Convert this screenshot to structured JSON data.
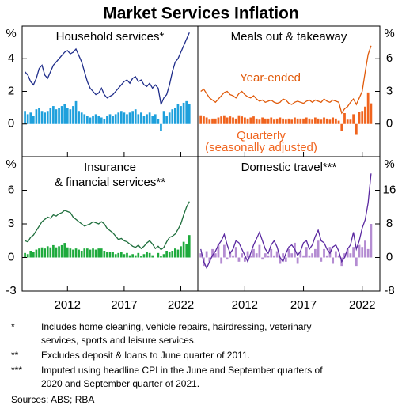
{
  "chart_data": {
    "type": "panel-grid",
    "title": "Market Services Inflation",
    "xlim": [
      2008,
      2023.5
    ],
    "xticks": [
      2012,
      2017,
      2022
    ],
    "x": [
      2008.25,
      2008.5,
      2008.75,
      2009,
      2009.25,
      2009.5,
      2009.75,
      2010,
      2010.25,
      2010.5,
      2010.75,
      2011,
      2011.25,
      2011.5,
      2011.75,
      2012,
      2012.25,
      2012.5,
      2012.75,
      2013,
      2013.25,
      2013.5,
      2013.75,
      2014,
      2014.25,
      2014.5,
      2014.75,
      2015,
      2015.25,
      2015.5,
      2015.75,
      2016,
      2016.25,
      2016.5,
      2016.75,
      2017,
      2017.25,
      2017.5,
      2017.75,
      2018,
      2018.25,
      2018.5,
      2018.75,
      2019,
      2019.25,
      2019.5,
      2019.75,
      2020,
      2020.25,
      2020.5,
      2020.75,
      2021,
      2021.25,
      2021.5,
      2021.75,
      2022,
      2022.25,
      2022.5,
      2022.75
    ],
    "panels": [
      {
        "title": [
          "Household services*"
        ],
        "unit": "%",
        "ylim": [
          -2,
          6
        ],
        "yticks": [
          0,
          2,
          4
        ],
        "series": [
          {
            "type": "bar",
            "color": "#1ea0dc",
            "values": [
              0.8,
              0.6,
              0.7,
              0.5,
              0.9,
              1.0,
              0.8,
              0.7,
              0.8,
              1.0,
              1.1,
              0.9,
              1.0,
              1.1,
              1.2,
              1.0,
              0.9,
              1.1,
              1.4,
              0.8,
              0.7,
              0.6,
              0.5,
              0.4,
              0.5,
              0.6,
              0.5,
              0.4,
              0.3,
              0.5,
              0.6,
              0.5,
              0.6,
              0.7,
              0.8,
              0.7,
              0.6,
              0.7,
              0.8,
              0.9,
              0.6,
              0.7,
              0.5,
              0.6,
              0.7,
              0.5,
              0.6,
              0.3,
              -0.4,
              0.8,
              0.5,
              0.7,
              0.9,
              1.0,
              1.2,
              1.1,
              1.3,
              1.4,
              1.2
            ]
          },
          {
            "type": "line",
            "color": "#1f2d8a",
            "values": [
              3.2,
              3.0,
              2.6,
              2.4,
              2.8,
              3.4,
              3.6,
              3.0,
              2.8,
              3.2,
              3.6,
              3.8,
              4.0,
              4.2,
              4.4,
              4.5,
              4.3,
              4.4,
              4.6,
              4.2,
              3.8,
              3.2,
              2.6,
              2.2,
              2.0,
              1.8,
              1.9,
              2.2,
              1.8,
              1.6,
              1.7,
              1.8,
              2.0,
              2.2,
              2.4,
              2.6,
              2.7,
              2.5,
              2.8,
              2.9,
              2.6,
              2.7,
              2.4,
              2.3,
              2.5,
              2.2,
              2.4,
              2.2,
              1.2,
              1.6,
              1.8,
              2.4,
              3.2,
              3.8,
              4.0,
              4.4,
              4.8,
              5.2,
              5.6
            ]
          }
        ]
      },
      {
        "title": [
          "Meals out & takeaway"
        ],
        "unit": "%",
        "ylim": [
          -3,
          9
        ],
        "yticks": [
          0,
          3,
          6
        ],
        "annotations": [
          {
            "text": "Year-ended",
            "color": "#e05a0a"
          },
          {
            "text": "Quarterly",
            "color": "#f0641e"
          },
          {
            "text": "(seasonally adjusted)",
            "color": "#f0641e"
          }
        ],
        "series": [
          {
            "type": "bar",
            "color": "#f0641e",
            "values": [
              0.8,
              0.7,
              0.6,
              0.4,
              0.5,
              0.5,
              0.6,
              0.7,
              0.8,
              0.6,
              0.7,
              0.6,
              0.5,
              0.8,
              0.7,
              0.6,
              0.5,
              0.6,
              0.7,
              0.5,
              0.4,
              0.6,
              0.5,
              0.5,
              0.6,
              0.4,
              0.5,
              0.6,
              0.5,
              0.4,
              0.5,
              0.4,
              0.6,
              0.5,
              0.5,
              0.5,
              0.6,
              0.5,
              0.4,
              0.6,
              0.5,
              0.4,
              0.6,
              0.5,
              0.4,
              0.6,
              0.5,
              0.3,
              -0.6,
              1.0,
              0.4,
              0.4,
              0.9,
              -1.0,
              1.1,
              1.2,
              1.6,
              2.9,
              1.9
            ]
          },
          {
            "type": "line",
            "color": "#e05a0a",
            "values": [
              3.0,
              3.2,
              2.8,
              2.4,
              2.2,
              2.0,
              2.3,
              2.6,
              2.9,
              3.0,
              2.7,
              2.6,
              2.4,
              2.8,
              3.0,
              2.7,
              2.5,
              2.4,
              2.6,
              2.3,
              2.1,
              2.2,
              2.0,
              2.1,
              2.2,
              2.0,
              1.9,
              2.0,
              2.3,
              2.2,
              1.9,
              1.8,
              2.0,
              2.1,
              2.0,
              1.9,
              2.1,
              2.2,
              2.0,
              2.2,
              2.1,
              2.0,
              2.3,
              2.1,
              2.0,
              2.2,
              2.1,
              2.0,
              1.0,
              1.4,
              1.6,
              2.0,
              2.3,
              1.8,
              2.4,
              3.0,
              4.8,
              6.4,
              7.2
            ]
          }
        ]
      },
      {
        "title": [
          "Insurance",
          "& financial services**"
        ],
        "unit": "%",
        "ylim": [
          -3,
          9
        ],
        "yticks": [
          -3,
          0,
          3,
          6
        ],
        "series": [
          {
            "type": "bar",
            "color": "#1eaa3c",
            "values": [
              0.4,
              0.3,
              0.6,
              0.5,
              0.7,
              0.8,
              0.9,
              0.8,
              1.0,
              0.9,
              1.1,
              0.9,
              1.0,
              1.1,
              1.3,
              0.9,
              0.8,
              0.7,
              0.8,
              0.7,
              0.6,
              0.8,
              0.8,
              0.7,
              0.8,
              0.7,
              0.8,
              0.8,
              0.6,
              0.5,
              0.5,
              0.5,
              0.3,
              0.4,
              0.5,
              0.3,
              0.4,
              0.2,
              0.3,
              0.2,
              0.4,
              0.1,
              0.3,
              0.5,
              0.4,
              0.2,
              0.0,
              0.4,
              0.1,
              0.3,
              0.6,
              0.5,
              0.6,
              0.8,
              0.7,
              1.0,
              1.4,
              1.2,
              2.0
            ]
          },
          {
            "type": "line",
            "color": "#1e6e3c",
            "values": [
              1.5,
              1.4,
              1.8,
              2.0,
              2.4,
              2.8,
              3.2,
              3.4,
              3.6,
              3.5,
              3.8,
              3.7,
              3.9,
              4.0,
              4.2,
              4.1,
              4.0,
              3.6,
              3.4,
              3.2,
              3.0,
              2.8,
              2.9,
              3.0,
              3.2,
              3.1,
              3.0,
              3.2,
              3.0,
              2.6,
              2.4,
              2.2,
              1.9,
              1.6,
              1.7,
              1.5,
              1.4,
              1.2,
              1.0,
              0.9,
              1.1,
              0.8,
              1.0,
              1.3,
              1.5,
              1.2,
              0.8,
              1.0,
              0.7,
              0.9,
              1.4,
              1.8,
              1.9,
              2.1,
              2.5,
              3.0,
              3.8,
              4.5,
              5.0
            ]
          }
        ]
      },
      {
        "title": [
          "Domestic travel***"
        ],
        "unit": "%",
        "ylim": [
          -8,
          24
        ],
        "yticks": [
          -8,
          0,
          8,
          16
        ],
        "series": [
          {
            "type": "bar",
            "color": "#b48cd2",
            "values": [
              1.0,
              -2.0,
              1.5,
              -1.0,
              2.0,
              1.0,
              3.0,
              -1.5,
              3.0,
              -0.5,
              1.5,
              0.5,
              2.5,
              -1.0,
              1.0,
              -1.0,
              1.5,
              0.5,
              2.0,
              1.0,
              3.0,
              -0.5,
              1.0,
              0.5,
              2.0,
              0.5,
              1.5,
              -1.5,
              1.0,
              -1.0,
              2.0,
              1.0,
              3.5,
              -1.5,
              1.5,
              0.5,
              2.5,
              0.5,
              1.0,
              2.0,
              4.0,
              -1.0,
              2.0,
              0.5,
              2.5,
              -1.5,
              1.5,
              0.5,
              -2.0,
              1.0,
              2.0,
              1.0,
              2.5,
              -2.0,
              3.0,
              2.5,
              4.0,
              2.0,
              8.0
            ]
          },
          {
            "type": "line",
            "color": "#5a28a0",
            "values": [
              2.0,
              -1.0,
              -2.5,
              -1.0,
              0.5,
              1.5,
              3.0,
              4.0,
              5.5,
              3.0,
              1.0,
              2.0,
              4.0,
              3.5,
              2.0,
              0.5,
              -1.0,
              1.0,
              3.0,
              4.5,
              6.0,
              4.0,
              2.0,
              1.0,
              3.0,
              4.0,
              2.5,
              0.0,
              -1.0,
              1.0,
              2.5,
              3.0,
              2.0,
              0.5,
              1.5,
              3.5,
              4.0,
              2.0,
              3.0,
              5.0,
              6.5,
              4.0,
              3.5,
              2.0,
              1.0,
              2.5,
              3.0,
              1.5,
              -1.0,
              0.0,
              2.0,
              3.0,
              6.0,
              2.0,
              4.0,
              7.0,
              9.0,
              13.0,
              20.0
            ]
          }
        ]
      }
    ],
    "notes": [
      {
        "mark": "*",
        "text": [
          "Includes home cleaning, vehicle repairs, hairdressing, veterinary",
          "services, sports and leisure services."
        ]
      },
      {
        "mark": "**",
        "text": [
          "Excludes deposit & loans to June quarter of 2011."
        ]
      },
      {
        "mark": "***",
        "text": [
          "Imputed using headline CPI in the June and September quarters of",
          "2020 and September quarter of 2021."
        ]
      }
    ],
    "source": "Sources: ABS; RBA"
  }
}
